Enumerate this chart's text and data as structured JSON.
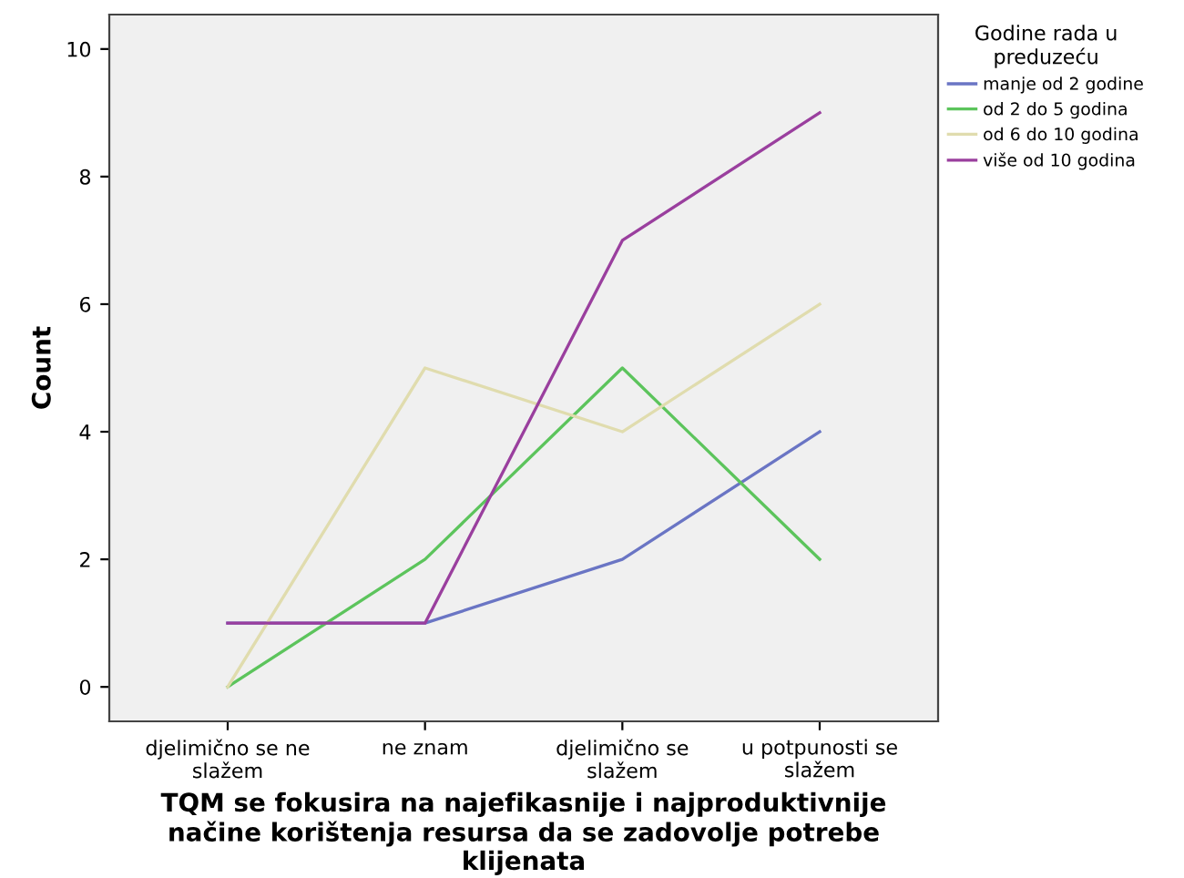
{
  "chart_data": {
    "type": "line",
    "categories": [
      "djelimično se ne\nslažem",
      "ne znam",
      "djelimično se\nslažem",
      "u potpunosti se\nslažem"
    ],
    "xlabel": "TQM se fokusira na najefikasnije i najproduktivnije\nnačine korištenja resursa da se zadovolje potrebe\nklijenata",
    "ylabel": "Count",
    "legend_title": "Godine rada u\npreduzeću",
    "legend": "top right",
    "grid": false,
    "marker": "none",
    "line_style": "solid",
    "ylim": [
      -0.54,
      10.54
    ],
    "yticks": [
      0,
      2,
      4,
      6,
      8,
      10
    ],
    "series": [
      {
        "name": "manje od 2 godine",
        "color": "#6a75c4",
        "values": [
          1,
          1,
          2,
          4
        ]
      },
      {
        "name": "od 2 do 5 godina",
        "color": "#5cc45c",
        "values": [
          0,
          2,
          5,
          2
        ]
      },
      {
        "name": "od 6 do 10 godina",
        "color": "#e0dcae",
        "values": [
          0,
          5,
          4,
          6
        ]
      },
      {
        "name": "više od 10 godina",
        "color": "#9a3f9e",
        "values": [
          1,
          1,
          7,
          9
        ]
      }
    ]
  }
}
